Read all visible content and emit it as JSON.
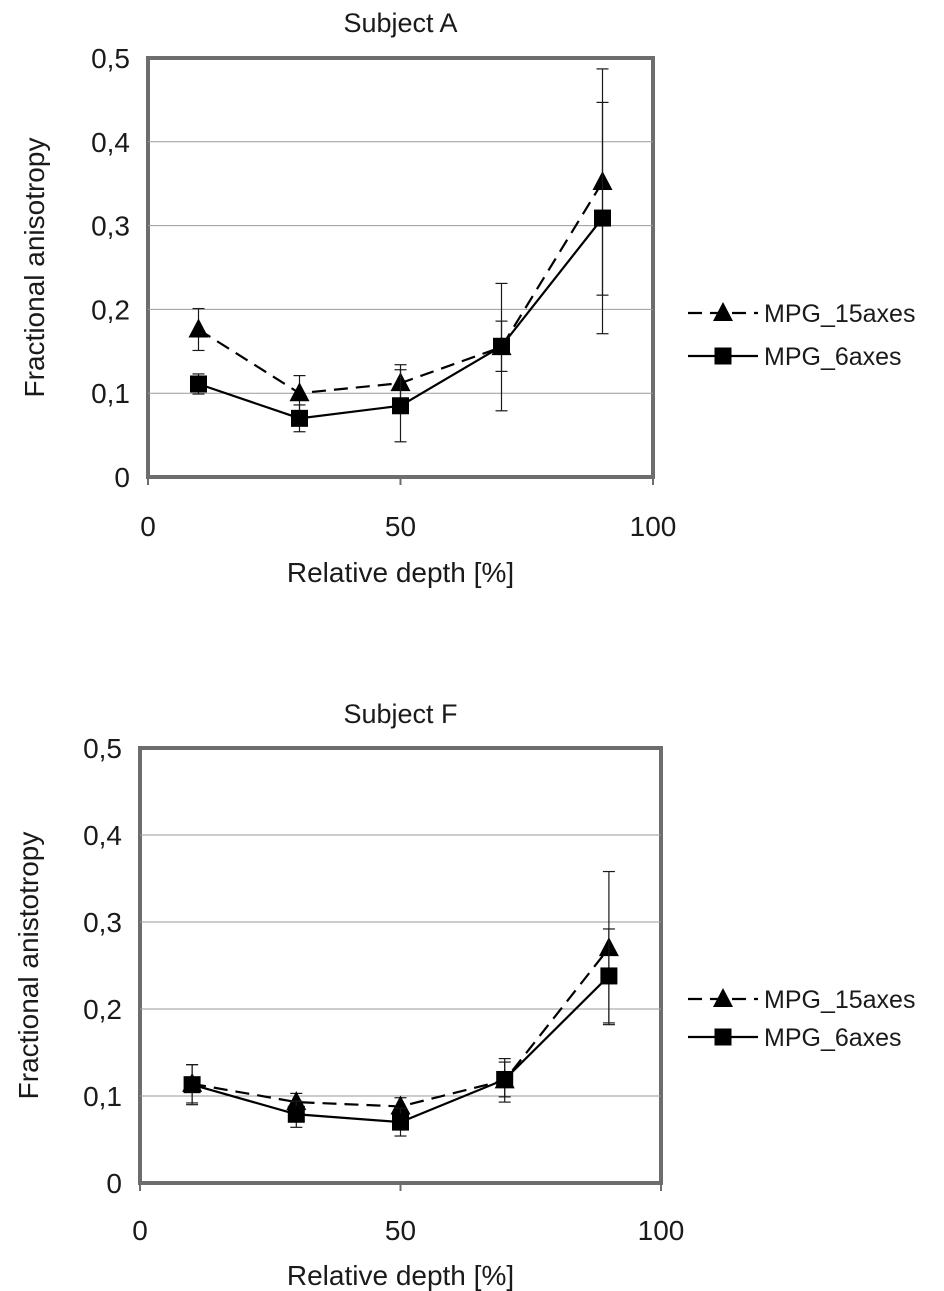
{
  "chart_data": [
    {
      "type": "line",
      "title": "Subject A",
      "xlabel": "Relative depth [%]",
      "ylabel": "Fractional anisotropy",
      "xlim": [
        0,
        100
      ],
      "ylim": [
        0,
        0.5
      ],
      "x_ticks": [
        0,
        50,
        100
      ],
      "x_tick_labels": [
        "0",
        "50",
        "100"
      ],
      "y_ticks": [
        0,
        0.1,
        0.2,
        0.3,
        0.4,
        0.5
      ],
      "y_tick_labels": [
        "0",
        "0,1",
        "0,2",
        "0,3",
        "0,4",
        "0,5"
      ],
      "grid": "horizontal",
      "legend_position": "right",
      "x": [
        10,
        30,
        50,
        70,
        90
      ],
      "series": [
        {
          "name": "MPG_15axes",
          "marker": "triangle",
          "line": "dashed",
          "values": [
            0.176,
            0.1,
            0.112,
            0.155,
            0.352
          ],
          "error": [
            0.025,
            0.021,
            0.022,
            0.076,
            0.135
          ]
        },
        {
          "name": "MPG_6axes",
          "marker": "square",
          "line": "solid",
          "values": [
            0.111,
            0.07,
            0.085,
            0.156,
            0.309
          ],
          "error": [
            0.012,
            0.016,
            0.043,
            0.03,
            0.138
          ]
        }
      ]
    },
    {
      "type": "line",
      "title": "Subject F",
      "xlabel": "Relative depth [%]",
      "ylabel": "Fractional anistotropy",
      "xlim": [
        0,
        100
      ],
      "ylim": [
        0,
        0.5
      ],
      "x_ticks": [
        0,
        50,
        100
      ],
      "x_tick_labels": [
        "0",
        "50",
        "100"
      ],
      "y_ticks": [
        0,
        0.1,
        0.2,
        0.3,
        0.4,
        0.5
      ],
      "y_tick_labels": [
        "0",
        "0,1",
        "0,2",
        "0,3",
        "0,4",
        "0,5"
      ],
      "grid": "horizontal",
      "legend_position": "right",
      "x": [
        10,
        30,
        50,
        70,
        90
      ],
      "series": [
        {
          "name": "MPG_15axes",
          "marker": "triangle",
          "line": "dashed",
          "values": [
            0.114,
            0.093,
            0.088,
            0.118,
            0.27
          ],
          "error": [
            0.022,
            0.01,
            0.01,
            0.025,
            0.088
          ]
        },
        {
          "name": "MPG_6axes",
          "marker": "square",
          "line": "solid",
          "values": [
            0.113,
            0.079,
            0.07,
            0.119,
            0.238
          ],
          "error": [
            0.023,
            0.015,
            0.016,
            0.02,
            0.054
          ]
        }
      ]
    }
  ]
}
